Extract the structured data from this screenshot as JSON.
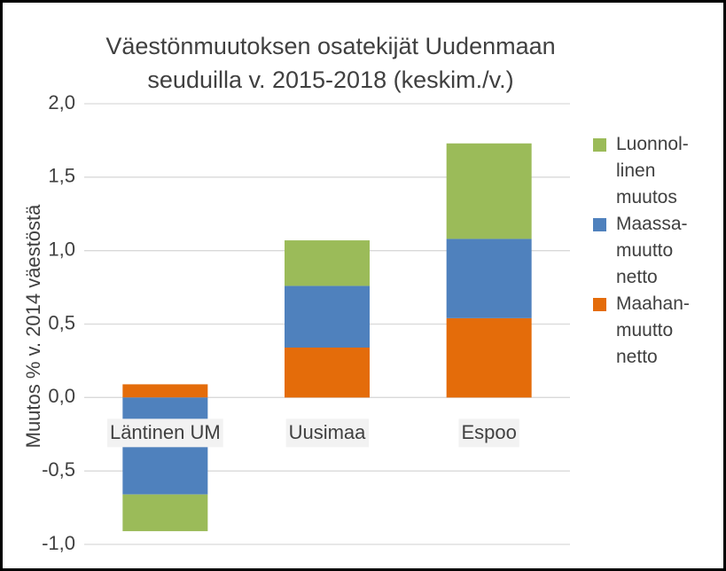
{
  "chart_data": {
    "type": "stacked_bar",
    "title": "Väestönmuutoksen osatekijät Uudenmaan seuduilla v. 2015-2018 (keskim./v.)",
    "y_label": "Muutos % v. 2014 väestöstä",
    "categories": [
      "Läntinen UM",
      "Uusimaa",
      "Espoo"
    ],
    "series": [
      {
        "name": "Maahan-muutto netto",
        "color": "#e46c0a",
        "values": [
          0.09,
          0.34,
          0.54
        ]
      },
      {
        "name": "Maassa-muutto netto",
        "color": "#4f81bd",
        "values": [
          -0.66,
          0.42,
          0.54
        ]
      },
      {
        "name": "Luonnol-linen muutos",
        "color": "#9bbb59",
        "values": [
          -0.25,
          0.31,
          0.65
        ]
      }
    ],
    "ylim": [
      -1.0,
      2.0
    ],
    "yticks": [
      {
        "value": -1.0,
        "label": "-1,0"
      },
      {
        "value": -0.5,
        "label": "-0,5"
      },
      {
        "value": 0,
        "label": "0,0"
      },
      {
        "value": 0.5,
        "label": "0,5"
      },
      {
        "value": 1.0,
        "label": "1,0"
      },
      {
        "value": 1.5,
        "label": "1,5"
      },
      {
        "value": 2.0,
        "label": "2,0"
      }
    ],
    "grid": true,
    "legend": "right"
  }
}
